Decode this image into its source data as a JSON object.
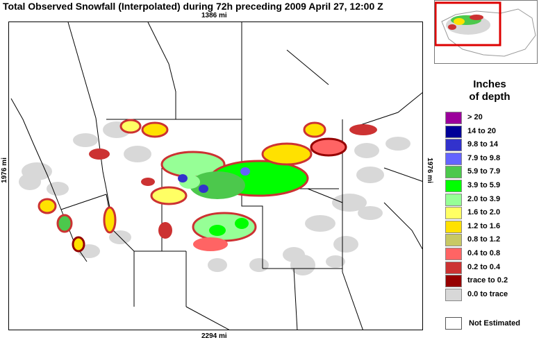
{
  "title": "Total Observed Snowfall (Interpolated) during 72h preceding 2009 April 27, 12:00 Z",
  "dimensions": {
    "top": "1386 mi",
    "bottom": "2294 mi",
    "left": "1976 mi",
    "right": "1976 mi"
  },
  "legend": {
    "title_line1": "Inches",
    "title_line2": "of depth",
    "items": [
      {
        "label": ">    20",
        "color": "#9b009b"
      },
      {
        "label": "14 to   20",
        "color": "#000097"
      },
      {
        "label": "9.8 to   14",
        "color": "#3232cc"
      },
      {
        "label": "7.9 to  9.8",
        "color": "#6464ff"
      },
      {
        "label": "5.9 to  7.9",
        "color": "#4cc84c"
      },
      {
        "label": "3.9 to  5.9",
        "color": "#00ff00"
      },
      {
        "label": "2.0 to  3.9",
        "color": "#96ff96"
      },
      {
        "label": "1.6 to  2.0",
        "color": "#ffff64"
      },
      {
        "label": "1.2 to  1.6",
        "color": "#ffe100"
      },
      {
        "label": "0.8 to  1.2",
        "color": "#c8c864"
      },
      {
        "label": "0.4 to  0.8",
        "color": "#ff6464"
      },
      {
        "label": "0.2 to  0.4",
        "color": "#cc3232"
      },
      {
        "label": "trace to  0.2",
        "color": "#960000"
      },
      {
        "label": "0.0 to trace",
        "color": "#d8d8d8"
      }
    ],
    "not_estimated": {
      "label": "Not Estimated",
      "color": "#ffffff"
    }
  },
  "colors": {
    "border": "#000000",
    "inset_frame": "#dd0000"
  }
}
